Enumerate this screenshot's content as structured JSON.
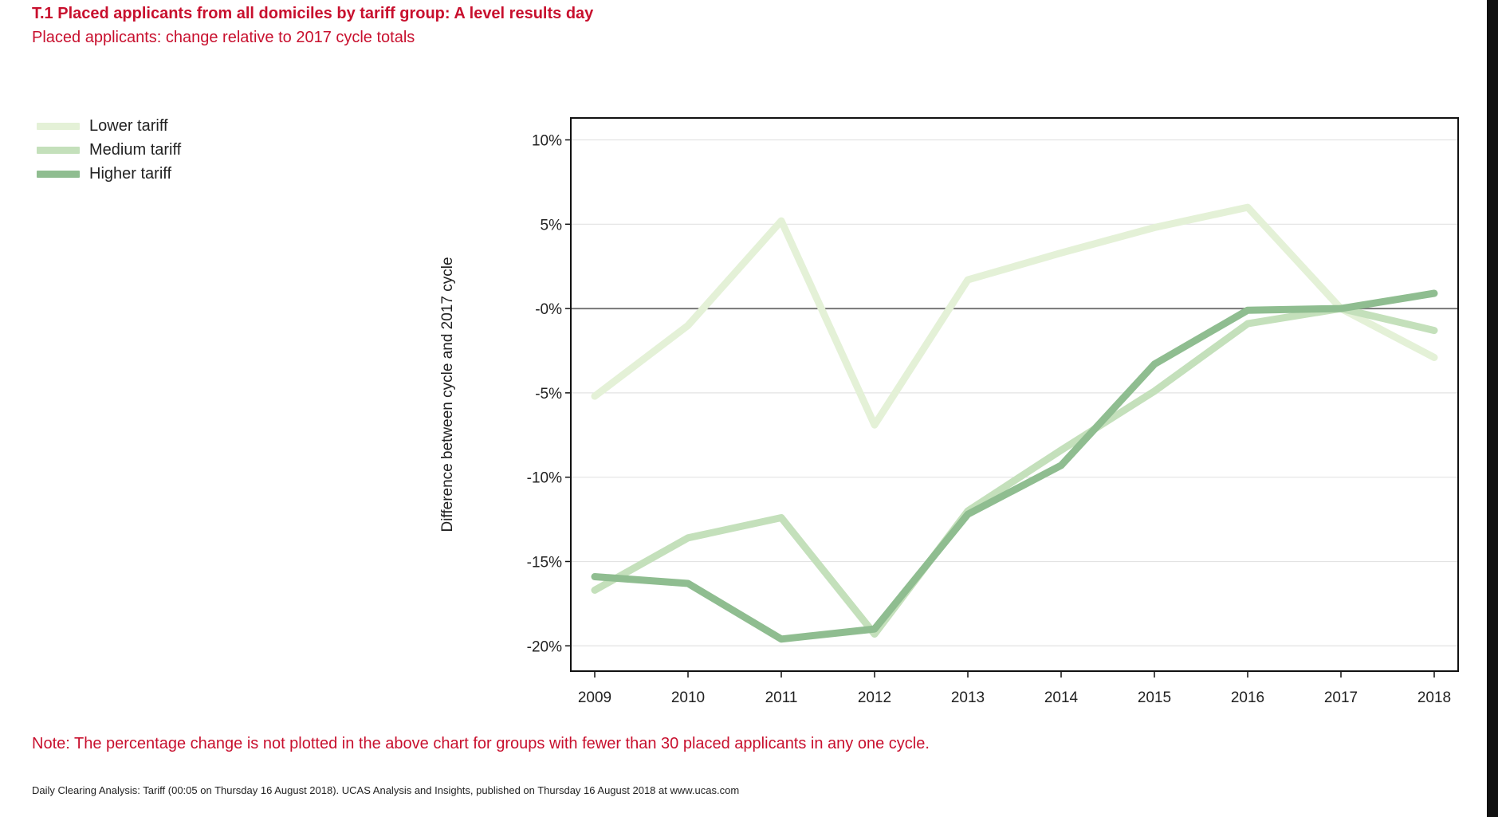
{
  "header": {
    "title": "T.1 Placed applicants from all domiciles by tariff group: A level results day",
    "subtitle": "Placed applicants: change relative to 2017 cycle totals"
  },
  "note": "Note: The percentage change is not plotted in the above chart for groups with fewer than 30 placed applicants in any one cycle.",
  "footer": "Daily Clearing Analysis: Tariff (00:05 on Thursday 16 August 2018). UCAS Analysis and Insights, published on Thursday 16 August 2018 at www.ucas.com",
  "chart_data": {
    "type": "line",
    "title": "T.1 Placed applicants from all domiciles by tariff group: A level results day",
    "subtitle": "Placed applicants: change relative to 2017 cycle totals",
    "xlabel": "",
    "ylabel": "Difference between cycle and 2017 cycle",
    "x": [
      2009,
      2010,
      2011,
      2012,
      2013,
      2014,
      2015,
      2016,
      2017,
      2018
    ],
    "ylim": [
      -21.5,
      11.3
    ],
    "yticks": [
      10,
      5,
      0,
      -5,
      -10,
      -15,
      -20
    ],
    "ytick_labels": [
      "10%",
      "5%",
      "-0%",
      "-5%",
      "-10%",
      "-15%",
      "-20%"
    ],
    "grid": true,
    "legend_position": "top-left",
    "series": [
      {
        "name": "Lower tariff",
        "color": "#e4f1d7",
        "values": [
          -5.2,
          -1.0,
          5.2,
          -6.9,
          1.7,
          3.3,
          4.8,
          6.0,
          0.0,
          -2.9
        ]
      },
      {
        "name": "Medium tariff",
        "color": "#c4e0bb",
        "values": [
          -16.7,
          -13.6,
          -12.4,
          -19.3,
          -12.0,
          -8.4,
          -4.9,
          -0.9,
          0.0,
          -1.3
        ]
      },
      {
        "name": "Higher tariff",
        "color": "#8fbd90",
        "values": [
          -15.9,
          -16.3,
          -19.6,
          -19.0,
          -12.2,
          -9.3,
          -3.3,
          -0.1,
          0.0,
          0.9
        ]
      }
    ]
  }
}
